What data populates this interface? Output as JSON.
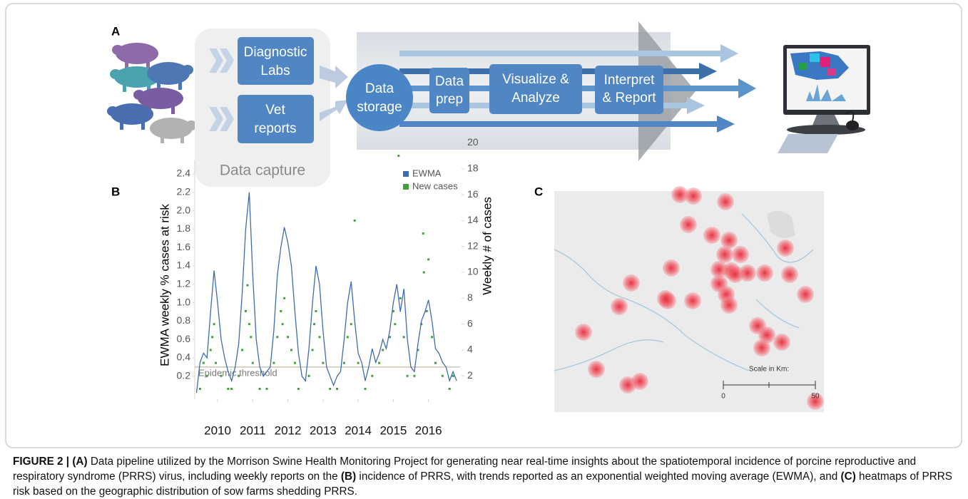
{
  "panels": {
    "a": "A",
    "b": "B",
    "c": "C"
  },
  "diagram": {
    "sources": [
      [
        "Diagnostic",
        "Labs"
      ],
      [
        "Vet",
        "reports"
      ]
    ],
    "capture_label": "Data capture",
    "storage": [
      "Data",
      "storage"
    ],
    "steps": [
      [
        "Data",
        "prep"
      ],
      [
        "Visualize &",
        "Analyze"
      ],
      [
        "Interpret",
        "& Report"
      ]
    ]
  },
  "chart_data": {
    "type": "line",
    "y_label": "EWMA weekly % cases at risk",
    "y2_label": "Weekly # of cases",
    "xlim": [
      2009.85,
      2017.4
    ],
    "xticks": [
      {
        "value": 2010.5,
        "label": "2010"
      },
      {
        "value": 2011.5,
        "label": "2011"
      },
      {
        "value": 2012.5,
        "label": "2012"
      },
      {
        "value": 2013.5,
        "label": "2013"
      },
      {
        "value": 2014.5,
        "label": "2014"
      },
      {
        "value": 2015.5,
        "label": "2015"
      },
      {
        "value": 2016.5,
        "label": "2016"
      }
    ],
    "ylim": [
      -0.05,
      2.78
    ],
    "yticks": [
      0.2,
      0.4,
      0.6,
      0.8,
      {
        "value": 1,
        "label": "1.0"
      },
      1.2,
      1.4,
      1.6,
      1.8,
      {
        "value": 2,
        "label": "2.0"
      },
      2.2,
      2.4
    ],
    "y2lim": [
      0.2,
      20.3
    ],
    "y2ticks": [
      2,
      4,
      6,
      8,
      10,
      12,
      14,
      16,
      18,
      20
    ],
    "legend": "upper right",
    "threshold": {
      "value": 0.3,
      "label": "Epidemic threshold"
    },
    "series": [
      {
        "name": "EWMA",
        "color": "#3d6db0",
        "type": "line",
        "x": [
          2009.9,
          2010.0,
          2010.1,
          2010.2,
          2010.3,
          2010.4,
          2010.5,
          2010.6,
          2010.7,
          2010.8,
          2010.9,
          2011.0,
          2011.1,
          2011.2,
          2011.3,
          2011.4,
          2011.5,
          2011.6,
          2011.7,
          2011.8,
          2011.9,
          2012.0,
          2012.1,
          2012.2,
          2012.3,
          2012.4,
          2012.5,
          2012.6,
          2012.7,
          2012.8,
          2012.9,
          2013.0,
          2013.1,
          2013.2,
          2013.3,
          2013.4,
          2013.5,
          2013.6,
          2013.7,
          2013.8,
          2013.9,
          2014.0,
          2014.1,
          2014.2,
          2014.3,
          2014.4,
          2014.5,
          2014.6,
          2014.7,
          2014.8,
          2014.9,
          2015.0,
          2015.1,
          2015.2,
          2015.3,
          2015.4,
          2015.5,
          2015.6,
          2015.7,
          2015.8,
          2015.9,
          2016.0,
          2016.1,
          2016.2,
          2016.3,
          2016.4,
          2016.5,
          2016.6,
          2016.7,
          2016.8,
          2016.9,
          2017.0,
          2017.1,
          2017.2,
          2017.3
        ],
        "values": [
          0.02,
          0.35,
          0.45,
          0.4,
          0.9,
          1.35,
          1.0,
          0.6,
          0.4,
          0.25,
          0.15,
          0.3,
          0.55,
          1.1,
          1.8,
          2.2,
          1.3,
          0.6,
          0.3,
          0.2,
          0.25,
          0.3,
          0.7,
          1.3,
          1.6,
          1.82,
          1.65,
          1.4,
          0.9,
          0.45,
          0.2,
          0.15,
          0.5,
          1.0,
          1.4,
          1.2,
          0.7,
          0.3,
          0.2,
          0.1,
          0.2,
          0.25,
          0.6,
          1.0,
          1.23,
          0.8,
          0.45,
          0.35,
          0.15,
          0.3,
          0.5,
          0.35,
          0.45,
          0.6,
          0.5,
          0.7,
          1.0,
          1.2,
          0.9,
          1.15,
          0.6,
          0.3,
          0.25,
          0.55,
          0.8,
          0.9,
          1.03,
          0.8,
          0.5,
          0.45,
          0.35,
          0.3,
          0.15,
          0.25,
          0.15
        ]
      },
      {
        "name": "New cases",
        "color": "#3fa33a",
        "type": "scatter",
        "axis": "y2",
        "x": [
          2010.0,
          2010.1,
          2010.2,
          2010.3,
          2010.35,
          2010.4,
          2010.45,
          2010.6,
          2010.8,
          2010.9,
          2011.1,
          2011.2,
          2011.3,
          2011.35,
          2011.4,
          2011.45,
          2011.5,
          2011.7,
          2011.9,
          2012.1,
          2012.2,
          2012.3,
          2012.35,
          2012.4,
          2012.5,
          2012.6,
          2012.7,
          2012.8,
          2013.1,
          2013.2,
          2013.25,
          2013.3,
          2013.4,
          2013.5,
          2013.7,
          2013.9,
          2014.1,
          2014.2,
          2014.3,
          2014.4,
          2014.5,
          2014.7,
          2014.9,
          2015.1,
          2015.2,
          2015.4,
          2015.5,
          2015.55,
          2015.65,
          2015.7,
          2015.8,
          2015.9,
          2016.1,
          2016.2,
          2016.3,
          2016.35,
          2016.37,
          2016.45,
          2016.5,
          2016.6,
          2016.7,
          2016.9,
          2017.1,
          2017.2
        ],
        "values": [
          1,
          3,
          2,
          4,
          5,
          6,
          3,
          2,
          1,
          1,
          2,
          4,
          7,
          9,
          6,
          5,
          3,
          1,
          1,
          3,
          5,
          7,
          6,
          8,
          5,
          4,
          3,
          1,
          2,
          4,
          6,
          7,
          5,
          3,
          1,
          1,
          3,
          5,
          6,
          14,
          3,
          1,
          2,
          3,
          4,
          5,
          7,
          6,
          19,
          8,
          5,
          2,
          2,
          4,
          6,
          13,
          10,
          7,
          11,
          5,
          3,
          2,
          1,
          2
        ]
      }
    ]
  },
  "map": {
    "scale_title": "Scale in Km:",
    "scale_ticks": [
      "0",
      "50"
    ]
  },
  "caption": [
    {
      "text": "FIGURE 2 |",
      "bold": true
    },
    {
      "text": " (A)",
      "bold": true
    },
    {
      "text": " Data pipeline utilized by the Morrison Swine Health Monitoring Project for generating near real-time insights about the spatiotemporal incidence of porcine reproductive and respiratory syndrome (PRRS) virus, including weekly reports on the",
      "bold": false
    },
    {
      "text": " (B)",
      "bold": true
    },
    {
      "text": " incidence of PRRS, with trends reported as an exponential weighted moving average (EWMA), and",
      "bold": false
    },
    {
      "text": " (C)",
      "bold": true
    },
    {
      "text": " heatmaps of PRRS risk based on the geographic distribution of sow farms shedding PRRS.",
      "bold": false
    }
  ]
}
